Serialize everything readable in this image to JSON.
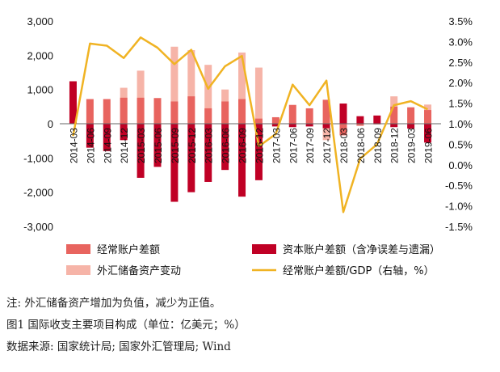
{
  "chart_data": {
    "type": "bar",
    "categories": [
      "2014-03",
      "2014-06",
      "2014-09",
      "2014-12",
      "2015-03",
      "2015-06",
      "2015-09",
      "2015-12",
      "2016-03",
      "2016-06",
      "2016-09",
      "2016-12",
      "2017-03",
      "2017-06",
      "2017-09",
      "2017-12",
      "2018-03",
      "2018-06",
      "2018-09",
      "2018-12",
      "2019-03",
      "2019-06"
    ],
    "x_tick_labels": [
      "2014-03",
      "2014-06",
      "2014-09",
      "2014-12",
      "2015-03",
      "2015-06",
      "2015-09",
      "2015-12",
      "2016-03",
      "2016-06",
      "2016-09",
      "2016-12",
      "2017-03",
      "2017-06",
      "2017-09",
      "2017-12",
      "2018-03",
      "2018-06",
      "2018-09",
      "2018-12",
      "2019-03",
      "2019-06"
    ],
    "series": [
      {
        "name": "经常账户差额",
        "kind": "bar",
        "color": "#e8645f",
        "values": [
          70,
          720,
          720,
          760,
          760,
          750,
          650,
          800,
          450,
          650,
          720,
          150,
          190,
          550,
          450,
          700,
          -340,
          -60,
          -20,
          500,
          480,
          400
        ]
      },
      {
        "name": "资本账户差额（含净误差与遗漏）",
        "kind": "bar",
        "color": "#c00025",
        "values": [
          1240,
          -700,
          -800,
          -480,
          -1580,
          -1260,
          -2280,
          -2000,
          -1700,
          -1350,
          -2130,
          -1650,
          -80,
          -100,
          -80,
          -130,
          590,
          220,
          240,
          -100,
          -140,
          -550
        ]
      },
      {
        "name": "外汇储备资产变动",
        "kind": "bar",
        "color": "#f6b4a8",
        "values": [
          0,
          0,
          0,
          1050,
          1550,
          0,
          2250,
          2150,
          1720,
          1000,
          2080,
          1640,
          0,
          0,
          0,
          -480,
          0,
          0,
          0,
          800,
          0,
          560
        ]
      },
      {
        "name": "经常账户差额/GDP（右轴，%）",
        "kind": "line",
        "axis": "right",
        "color": "#f0b323",
        "values": [
          0.7,
          2.95,
          2.9,
          2.6,
          3.1,
          2.85,
          2.45,
          2.8,
          1.85,
          2.4,
          2.65,
          0.45,
          0.75,
          1.95,
          1.45,
          2.05,
          -1.15,
          0.15,
          0.5,
          1.45,
          1.55,
          1.35
        ]
      }
    ],
    "y_left": {
      "min": -3000,
      "max": 3000,
      "ticks": [
        "3,000",
        "2,000",
        "1,000",
        "0",
        "-1,000",
        "-2,000",
        "-3,000"
      ]
    },
    "y_right": {
      "min": -1.5,
      "max": 3.5,
      "ticks": [
        "3.5%",
        "3.0%",
        "2.5%",
        "2.0%",
        "1.5%",
        "1.0%",
        "0.5%",
        "0.0%",
        "-0.5%",
        "-1.0%",
        "-1.5%"
      ]
    },
    "legend_position": "bottom",
    "grid": false
  },
  "notes": {
    "note": "注: 外汇储备资产增加为负值，减少为正值。",
    "caption": "图1    国际收支主要项目构成（单位：亿美元；%）",
    "source": "数据来源: 国家统计局; 国家外汇管理局; Wind"
  }
}
